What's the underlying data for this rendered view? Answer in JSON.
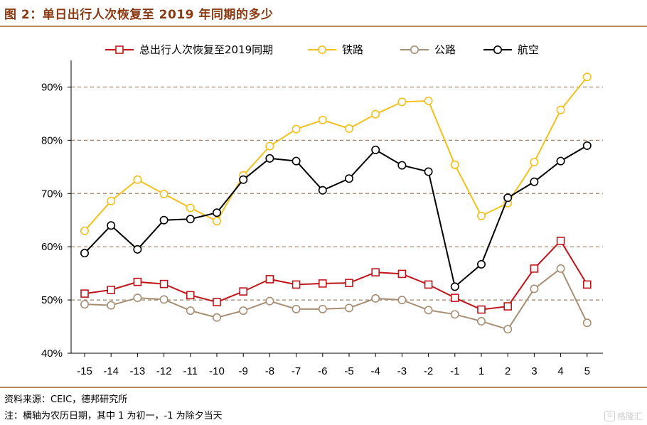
{
  "figure": {
    "title": "图 2：单日出行人次恢复至 2019 年同期的多少",
    "source": "资料来源：CEIC，德邦研究所",
    "note": "注：横轴为农历日期，其中 1 为初一，-1 为除夕当天",
    "watermark": "格隆汇"
  },
  "chart_data": {
    "type": "line",
    "x": [
      "-15",
      "-14",
      "-13",
      "-12",
      "-11",
      "-10",
      "-9",
      "-8",
      "-7",
      "-6",
      "-5",
      "-4",
      "-3",
      "-2",
      "-1",
      "1",
      "2",
      "3",
      "4",
      "5"
    ],
    "ylim": [
      40,
      95
    ],
    "yticks": [
      40,
      50,
      60,
      70,
      80,
      90
    ],
    "ytick_labels": [
      "40%",
      "50%",
      "60%",
      "70%",
      "80%",
      "90%"
    ],
    "grid": "horizontal-dashed",
    "legend_position": "top",
    "series": [
      {
        "name": "总出行人次恢复至2019同期",
        "color": "#c0141b",
        "marker": "square",
        "values": [
          51.2,
          51.9,
          53.4,
          53.0,
          50.9,
          49.6,
          51.6,
          53.9,
          52.9,
          53.1,
          53.2,
          55.2,
          54.9,
          52.9,
          50.4,
          48.2,
          48.8,
          55.9,
          61.1,
          52.9
        ]
      },
      {
        "name": "铁路",
        "color": "#f3c01c",
        "marker": "circle",
        "values": [
          63.0,
          68.6,
          72.6,
          69.9,
          67.3,
          64.8,
          73.4,
          78.9,
          82.1,
          83.8,
          82.2,
          84.9,
          87.2,
          87.4,
          75.4,
          65.8,
          68.2,
          75.9,
          85.7,
          91.9
        ]
      },
      {
        "name": "公路",
        "color": "#a68f74",
        "marker": "circle",
        "values": [
          49.2,
          49.0,
          50.4,
          50.1,
          48.0,
          46.7,
          48.0,
          49.8,
          48.3,
          48.3,
          48.5,
          50.3,
          50.0,
          48.1,
          47.3,
          46.0,
          44.5,
          52.1,
          55.9,
          45.7
        ]
      },
      {
        "name": "航空",
        "color": "#000000",
        "marker": "circle",
        "values": [
          58.8,
          64.0,
          59.5,
          65.0,
          65.2,
          66.4,
          72.6,
          76.6,
          76.1,
          70.6,
          72.8,
          78.2,
          75.3,
          74.1,
          52.5,
          56.7,
          69.2,
          72.2,
          76.1,
          79.0
        ]
      }
    ]
  }
}
